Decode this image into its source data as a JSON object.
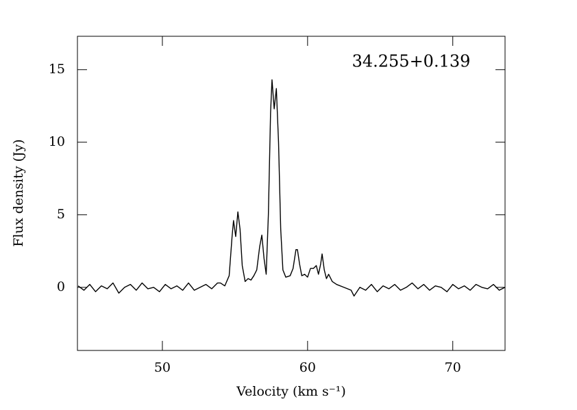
{
  "chart_data": {
    "type": "line",
    "annotation": "34.255+0.139",
    "xlabel": "Velocity (km s⁻¹)",
    "ylabel": "Flux density (Jy)",
    "color": "#000000",
    "xlim": [
      44.15,
      73.6
    ],
    "ylim": [
      -4.35,
      17.3
    ],
    "xticks": [
      50,
      60,
      70
    ],
    "yticks": [
      0,
      5,
      10,
      15
    ],
    "x": [
      44.2,
      44.6,
      45.0,
      45.4,
      45.8,
      46.2,
      46.6,
      47.0,
      47.4,
      47.8,
      48.2,
      48.6,
      49.0,
      49.4,
      49.8,
      50.2,
      50.6,
      51.0,
      51.4,
      51.8,
      52.2,
      52.6,
      53.0,
      53.4,
      53.8,
      54.0,
      54.3,
      54.6,
      54.8,
      54.9,
      55.05,
      55.2,
      55.35,
      55.5,
      55.7,
      55.9,
      56.1,
      56.3,
      56.5,
      56.7,
      56.85,
      57.0,
      57.15,
      57.3,
      57.45,
      57.55,
      57.7,
      57.85,
      58.0,
      58.15,
      58.3,
      58.5,
      58.8,
      59.0,
      59.2,
      59.3,
      59.45,
      59.6,
      59.8,
      60.0,
      60.2,
      60.4,
      60.6,
      60.75,
      60.9,
      61.0,
      61.15,
      61.3,
      61.45,
      61.7,
      62.0,
      62.5,
      63.0,
      63.2,
      63.6,
      64.0,
      64.4,
      64.8,
      65.2,
      65.6,
      66.0,
      66.4,
      66.8,
      67.2,
      67.6,
      68.0,
      68.4,
      68.8,
      69.2,
      69.6,
      70.0,
      70.4,
      70.8,
      71.2,
      71.6,
      72.0,
      72.4,
      72.8,
      73.2,
      73.6
    ],
    "values": [
      0.1,
      -0.2,
      0.2,
      -0.3,
      0.1,
      -0.1,
      0.3,
      -0.4,
      0.0,
      0.2,
      -0.2,
      0.3,
      -0.1,
      0.0,
      -0.3,
      0.2,
      -0.1,
      0.1,
      -0.2,
      0.3,
      -0.2,
      0.0,
      0.2,
      -0.1,
      0.3,
      0.3,
      0.1,
      0.8,
      3.5,
      4.6,
      3.5,
      5.2,
      4.0,
      1.5,
      0.4,
      0.6,
      0.5,
      0.8,
      1.2,
      2.8,
      3.6,
      2.0,
      0.9,
      5.0,
      12.0,
      14.3,
      12.3,
      13.7,
      10.0,
      4.0,
      1.2,
      0.7,
      0.8,
      1.3,
      2.6,
      2.6,
      1.6,
      0.8,
      0.9,
      0.7,
      1.3,
      1.3,
      1.5,
      0.9,
      1.6,
      2.3,
      1.2,
      0.6,
      0.9,
      0.4,
      0.2,
      0.0,
      -0.2,
      -0.6,
      0.0,
      -0.2,
      0.2,
      -0.3,
      0.1,
      -0.1,
      0.2,
      -0.2,
      0.0,
      0.3,
      -0.1,
      0.2,
      -0.2,
      0.1,
      0.0,
      -0.3,
      0.2,
      -0.1,
      0.1,
      -0.2,
      0.2,
      0.0,
      -0.1,
      0.2,
      -0.2,
      0.0
    ]
  }
}
